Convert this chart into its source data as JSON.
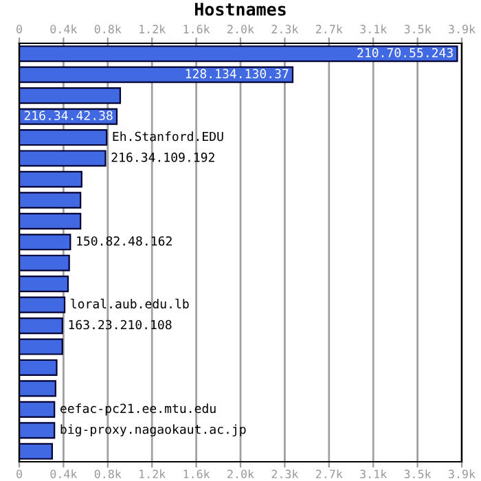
{
  "chart_data": {
    "type": "bar",
    "orientation": "horizontal",
    "title": "Hostnames",
    "categories": [
      "210.70.55.243",
      "128.134.130.37",
      null,
      "216.34.42.38",
      "Eh.Stanford.EDU",
      "216.34.109.192",
      null,
      null,
      null,
      "150.82.48.162",
      null,
      null,
      "loral.aub.edu.lb",
      "163.23.210.108",
      null,
      null,
      null,
      "eefac-pc21.ee.mtu.edu",
      "big-proxy.nagaokaut.ac.jp",
      null
    ],
    "values": [
      3860,
      2410,
      890,
      860,
      770,
      760,
      550,
      540,
      540,
      450,
      440,
      430,
      400,
      380,
      380,
      330,
      320,
      310,
      310,
      290
    ],
    "color": "#4169e1",
    "xlim": [
      0,
      3900
    ],
    "xticks": [
      0,
      {
        "value": 390,
        "label": "0.4k"
      },
      {
        "value": 780,
        "label": "0.8k"
      },
      {
        "value": 1170,
        "label": "1.2k"
      },
      {
        "value": 1560,
        "label": "1.6k"
      },
      {
        "value": 1950,
        "label": "2.0k"
      },
      {
        "value": 2340,
        "label": "2.3k"
      },
      {
        "value": 2730,
        "label": "2.7k"
      },
      {
        "value": 3120,
        "label": "3.1k"
      },
      {
        "value": 3510,
        "label": "3.5k"
      },
      {
        "value": 3900,
        "label": "3.9k"
      }
    ],
    "x2lim": [
      0,
      3900
    ],
    "x2ticks": [
      0,
      {
        "value": 390,
        "label": "0.4k"
      },
      {
        "value": 780,
        "label": "0.8k"
      },
      {
        "value": 1170,
        "label": "1.2k"
      },
      {
        "value": 1560,
        "label": "1.6k"
      },
      {
        "value": 1950,
        "label": "2.0k"
      },
      {
        "value": 2340,
        "label": "2.3k"
      },
      {
        "value": 2730,
        "label": "2.7k"
      },
      {
        "value": 3120,
        "label": "3.1k"
      },
      {
        "value": 3510,
        "label": "3.5k"
      },
      {
        "value": 3900,
        "label": "3.9k"
      }
    ],
    "grid": "x",
    "legend": false,
    "tick_labels": "x"
  }
}
